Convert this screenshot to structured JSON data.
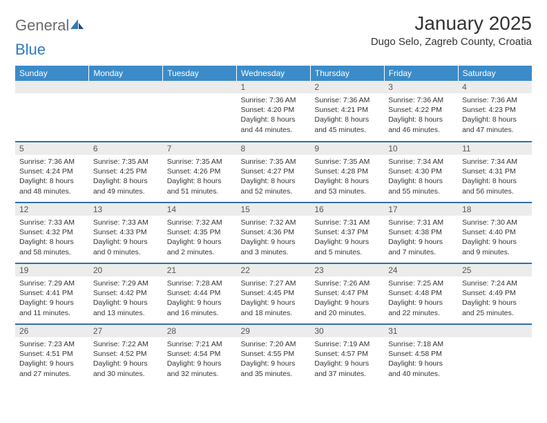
{
  "logo": {
    "text_a": "General",
    "text_b": "Blue"
  },
  "title": "January 2025",
  "location": "Dugo Selo, Zagreb County, Croatia",
  "colors": {
    "header_bg": "#3b8bc8",
    "header_text": "#ffffff",
    "daynum_bg": "#ececec",
    "row_divider": "#2f6fa8",
    "logo_gray": "#6b6b6b",
    "logo_blue": "#2f7bbf"
  },
  "day_headers": [
    "Sunday",
    "Monday",
    "Tuesday",
    "Wednesday",
    "Thursday",
    "Friday",
    "Saturday"
  ],
  "weeks": [
    [
      {
        "blank": true
      },
      {
        "blank": true
      },
      {
        "blank": true
      },
      {
        "num": "1",
        "sunrise": "Sunrise: 7:36 AM",
        "sunset": "Sunset: 4:20 PM",
        "dl1": "Daylight: 8 hours",
        "dl2": "and 44 minutes."
      },
      {
        "num": "2",
        "sunrise": "Sunrise: 7:36 AM",
        "sunset": "Sunset: 4:21 PM",
        "dl1": "Daylight: 8 hours",
        "dl2": "and 45 minutes."
      },
      {
        "num": "3",
        "sunrise": "Sunrise: 7:36 AM",
        "sunset": "Sunset: 4:22 PM",
        "dl1": "Daylight: 8 hours",
        "dl2": "and 46 minutes."
      },
      {
        "num": "4",
        "sunrise": "Sunrise: 7:36 AM",
        "sunset": "Sunset: 4:23 PM",
        "dl1": "Daylight: 8 hours",
        "dl2": "and 47 minutes."
      }
    ],
    [
      {
        "num": "5",
        "sunrise": "Sunrise: 7:36 AM",
        "sunset": "Sunset: 4:24 PM",
        "dl1": "Daylight: 8 hours",
        "dl2": "and 48 minutes."
      },
      {
        "num": "6",
        "sunrise": "Sunrise: 7:35 AM",
        "sunset": "Sunset: 4:25 PM",
        "dl1": "Daylight: 8 hours",
        "dl2": "and 49 minutes."
      },
      {
        "num": "7",
        "sunrise": "Sunrise: 7:35 AM",
        "sunset": "Sunset: 4:26 PM",
        "dl1": "Daylight: 8 hours",
        "dl2": "and 51 minutes."
      },
      {
        "num": "8",
        "sunrise": "Sunrise: 7:35 AM",
        "sunset": "Sunset: 4:27 PM",
        "dl1": "Daylight: 8 hours",
        "dl2": "and 52 minutes."
      },
      {
        "num": "9",
        "sunrise": "Sunrise: 7:35 AM",
        "sunset": "Sunset: 4:28 PM",
        "dl1": "Daylight: 8 hours",
        "dl2": "and 53 minutes."
      },
      {
        "num": "10",
        "sunrise": "Sunrise: 7:34 AM",
        "sunset": "Sunset: 4:30 PM",
        "dl1": "Daylight: 8 hours",
        "dl2": "and 55 minutes."
      },
      {
        "num": "11",
        "sunrise": "Sunrise: 7:34 AM",
        "sunset": "Sunset: 4:31 PM",
        "dl1": "Daylight: 8 hours",
        "dl2": "and 56 minutes."
      }
    ],
    [
      {
        "num": "12",
        "sunrise": "Sunrise: 7:33 AM",
        "sunset": "Sunset: 4:32 PM",
        "dl1": "Daylight: 8 hours",
        "dl2": "and 58 minutes."
      },
      {
        "num": "13",
        "sunrise": "Sunrise: 7:33 AM",
        "sunset": "Sunset: 4:33 PM",
        "dl1": "Daylight: 9 hours",
        "dl2": "and 0 minutes."
      },
      {
        "num": "14",
        "sunrise": "Sunrise: 7:32 AM",
        "sunset": "Sunset: 4:35 PM",
        "dl1": "Daylight: 9 hours",
        "dl2": "and 2 minutes."
      },
      {
        "num": "15",
        "sunrise": "Sunrise: 7:32 AM",
        "sunset": "Sunset: 4:36 PM",
        "dl1": "Daylight: 9 hours",
        "dl2": "and 3 minutes."
      },
      {
        "num": "16",
        "sunrise": "Sunrise: 7:31 AM",
        "sunset": "Sunset: 4:37 PM",
        "dl1": "Daylight: 9 hours",
        "dl2": "and 5 minutes."
      },
      {
        "num": "17",
        "sunrise": "Sunrise: 7:31 AM",
        "sunset": "Sunset: 4:38 PM",
        "dl1": "Daylight: 9 hours",
        "dl2": "and 7 minutes."
      },
      {
        "num": "18",
        "sunrise": "Sunrise: 7:30 AM",
        "sunset": "Sunset: 4:40 PM",
        "dl1": "Daylight: 9 hours",
        "dl2": "and 9 minutes."
      }
    ],
    [
      {
        "num": "19",
        "sunrise": "Sunrise: 7:29 AM",
        "sunset": "Sunset: 4:41 PM",
        "dl1": "Daylight: 9 hours",
        "dl2": "and 11 minutes."
      },
      {
        "num": "20",
        "sunrise": "Sunrise: 7:29 AM",
        "sunset": "Sunset: 4:42 PM",
        "dl1": "Daylight: 9 hours",
        "dl2": "and 13 minutes."
      },
      {
        "num": "21",
        "sunrise": "Sunrise: 7:28 AM",
        "sunset": "Sunset: 4:44 PM",
        "dl1": "Daylight: 9 hours",
        "dl2": "and 16 minutes."
      },
      {
        "num": "22",
        "sunrise": "Sunrise: 7:27 AM",
        "sunset": "Sunset: 4:45 PM",
        "dl1": "Daylight: 9 hours",
        "dl2": "and 18 minutes."
      },
      {
        "num": "23",
        "sunrise": "Sunrise: 7:26 AM",
        "sunset": "Sunset: 4:47 PM",
        "dl1": "Daylight: 9 hours",
        "dl2": "and 20 minutes."
      },
      {
        "num": "24",
        "sunrise": "Sunrise: 7:25 AM",
        "sunset": "Sunset: 4:48 PM",
        "dl1": "Daylight: 9 hours",
        "dl2": "and 22 minutes."
      },
      {
        "num": "25",
        "sunrise": "Sunrise: 7:24 AM",
        "sunset": "Sunset: 4:49 PM",
        "dl1": "Daylight: 9 hours",
        "dl2": "and 25 minutes."
      }
    ],
    [
      {
        "num": "26",
        "sunrise": "Sunrise: 7:23 AM",
        "sunset": "Sunset: 4:51 PM",
        "dl1": "Daylight: 9 hours",
        "dl2": "and 27 minutes."
      },
      {
        "num": "27",
        "sunrise": "Sunrise: 7:22 AM",
        "sunset": "Sunset: 4:52 PM",
        "dl1": "Daylight: 9 hours",
        "dl2": "and 30 minutes."
      },
      {
        "num": "28",
        "sunrise": "Sunrise: 7:21 AM",
        "sunset": "Sunset: 4:54 PM",
        "dl1": "Daylight: 9 hours",
        "dl2": "and 32 minutes."
      },
      {
        "num": "29",
        "sunrise": "Sunrise: 7:20 AM",
        "sunset": "Sunset: 4:55 PM",
        "dl1": "Daylight: 9 hours",
        "dl2": "and 35 minutes."
      },
      {
        "num": "30",
        "sunrise": "Sunrise: 7:19 AM",
        "sunset": "Sunset: 4:57 PM",
        "dl1": "Daylight: 9 hours",
        "dl2": "and 37 minutes."
      },
      {
        "num": "31",
        "sunrise": "Sunrise: 7:18 AM",
        "sunset": "Sunset: 4:58 PM",
        "dl1": "Daylight: 9 hours",
        "dl2": "and 40 minutes."
      },
      {
        "blank": true
      }
    ]
  ]
}
